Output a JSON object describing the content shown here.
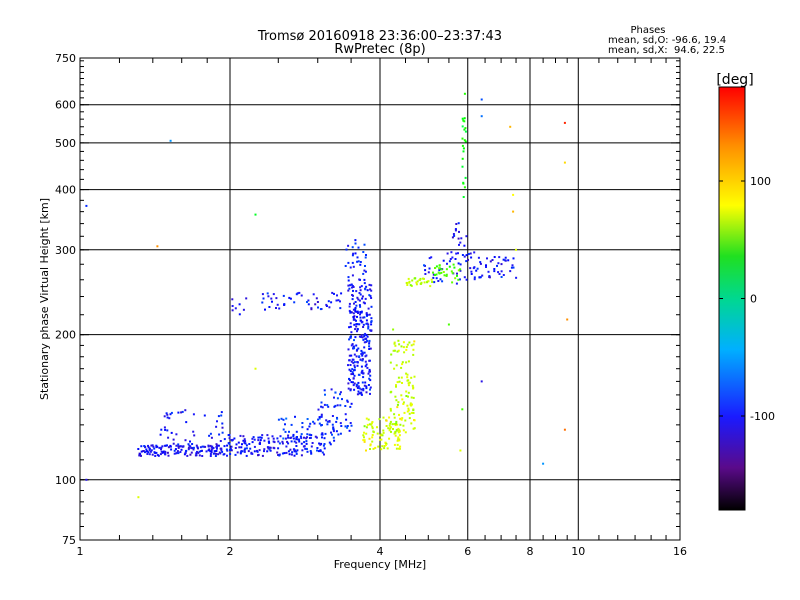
{
  "chart_data": {
    "type": "scatter",
    "title": "Tromsø 20160918 23:36:00–23:37:43",
    "subtitle": "RwPretec (8p)",
    "xlabel": "Frequency [MHz]",
    "ylabel": "Stationary phase Virtual Height [km]",
    "x_scale": "log",
    "y_scale": "log",
    "xlim": [
      1,
      16
    ],
    "ylim": [
      75,
      750
    ],
    "x_ticks": [
      1,
      2,
      4,
      6,
      8,
      10,
      16
    ],
    "x_tick_labels": [
      "1",
      "2",
      "4",
      "6",
      "8",
      "10",
      "16"
    ],
    "x_grid_lines": [
      1,
      2,
      4,
      6,
      8,
      10,
      16
    ],
    "x_minor_ticks": [
      1.2,
      1.4,
      1.6,
      1.8,
      2.5,
      3,
      3.5,
      4.5,
      5,
      5.5,
      6.5,
      7,
      7.5,
      8.5,
      9,
      9.5,
      11,
      12,
      13,
      14,
      15
    ],
    "y_ticks": [
      75,
      100,
      200,
      300,
      400,
      500,
      600,
      750
    ],
    "y_tick_labels": [
      "75",
      "100",
      "200",
      "300",
      "400",
      "500",
      "600",
      "750"
    ],
    "y_grid_lines": [
      100,
      200,
      300,
      400,
      500,
      600
    ],
    "grid": true,
    "legend": {
      "title": "Phases",
      "lines": [
        "mean, sd,O: -96.6, 19.4",
        "mean, sd,X:  94.6, 22.5"
      ],
      "placement": "top-right"
    },
    "colorbar": {
      "label": "[deg]",
      "range": [
        -180,
        180
      ],
      "ticks": [
        100,
        0,
        -100
      ],
      "tick_labels": [
        "100",
        "0",
        "-100"
      ],
      "colormap": "rainbow: black → purple → blue → cyan → green → yellow → orange → red",
      "placement": "right"
    },
    "series": [
      {
        "traces": [
          {
            "x0": 1.3,
            "x1": 1.95,
            "y0": 112,
            "y1": 118,
            "n": 150,
            "phase": -105
          },
          {
            "x0": 1.45,
            "x1": 1.95,
            "y0": 118,
            "y1": 140,
            "n": 45,
            "phase": -100
          },
          {
            "x0": 1.95,
            "x1": 3.1,
            "y0": 112,
            "y1": 124,
            "n": 170,
            "phase": -100
          },
          {
            "x0": 2.5,
            "x1": 3.3,
            "y0": 118,
            "y1": 136,
            "n": 50,
            "phase": -90
          },
          {
            "x0": 3.0,
            "x1": 3.55,
            "y0": 124,
            "y1": 155,
            "n": 60,
            "phase": -95
          },
          {
            "x0": 3.45,
            "x1": 3.85,
            "y0": 150,
            "y1": 260,
            "n": 260,
            "phase": -100
          },
          {
            "x0": 3.4,
            "x1": 3.75,
            "y0": 260,
            "y1": 315,
            "n": 30,
            "phase": -95
          },
          {
            "x0": 2.0,
            "x1": 2.2,
            "y0": 220,
            "y1": 240,
            "n": 8,
            "phase": -105
          },
          {
            "x0": 2.3,
            "x1": 3.35,
            "y0": 225,
            "y1": 245,
            "n": 50,
            "phase": -100
          },
          {
            "x0": 4.9,
            "x1": 6.2,
            "y0": 255,
            "y1": 300,
            "n": 45,
            "phase": -100
          },
          {
            "x0": 5.5,
            "x1": 6.0,
            "y0": 290,
            "y1": 345,
            "n": 18,
            "phase": -110
          },
          {
            "x0": 6.0,
            "x1": 7.6,
            "y0": 262,
            "y1": 290,
            "n": 45,
            "phase": -100
          }
        ]
      },
      {
        "traces": [
          {
            "x0": 3.7,
            "x1": 4.4,
            "y0": 115,
            "y1": 135,
            "n": 85,
            "phase": 100
          },
          {
            "x0": 4.2,
            "x1": 4.7,
            "y0": 125,
            "y1": 195,
            "n": 110,
            "phase": 95
          },
          {
            "x0": 4.5,
            "x1": 5.1,
            "y0": 252,
            "y1": 262,
            "n": 30,
            "phase": 90
          },
          {
            "x0": 5.1,
            "x1": 5.8,
            "y0": 255,
            "y1": 280,
            "n": 30,
            "phase": 60
          },
          {
            "x0": 5.85,
            "x1": 5.95,
            "y0": 380,
            "y1": 640,
            "n": 22,
            "phase": 40
          }
        ]
      }
    ],
    "scatter_points": [
      {
        "x": 1.03,
        "y": 370,
        "phase": -90
      },
      {
        "x": 1.03,
        "y": 100,
        "phase": -110
      },
      {
        "x": 1.31,
        "y": 92,
        "phase": 100
      },
      {
        "x": 1.43,
        "y": 305,
        "phase": 140
      },
      {
        "x": 1.52,
        "y": 505,
        "phase": -60
      },
      {
        "x": 2.25,
        "y": 355,
        "phase": 30
      },
      {
        "x": 2.25,
        "y": 170,
        "phase": 100
      },
      {
        "x": 4.25,
        "y": 205,
        "phase": 80
      },
      {
        "x": 5.5,
        "y": 210,
        "phase": 60
      },
      {
        "x": 5.8,
        "y": 115,
        "phase": 100
      },
      {
        "x": 5.85,
        "y": 140,
        "phase": 60
      },
      {
        "x": 6.4,
        "y": 615,
        "phase": -80
      },
      {
        "x": 6.4,
        "y": 568,
        "phase": -70
      },
      {
        "x": 6.4,
        "y": 160,
        "phase": -110
      },
      {
        "x": 7.3,
        "y": 540,
        "phase": 130
      },
      {
        "x": 7.4,
        "y": 390,
        "phase": 110
      },
      {
        "x": 7.4,
        "y": 360,
        "phase": 130
      },
      {
        "x": 7.5,
        "y": 300,
        "phase": 100
      },
      {
        "x": 8.5,
        "y": 108,
        "phase": -60
      },
      {
        "x": 9.4,
        "y": 550,
        "phase": 170
      },
      {
        "x": 9.4,
        "y": 455,
        "phase": 120
      },
      {
        "x": 9.5,
        "y": 215,
        "phase": 140
      },
      {
        "x": 9.4,
        "y": 127,
        "phase": 150
      }
    ]
  }
}
